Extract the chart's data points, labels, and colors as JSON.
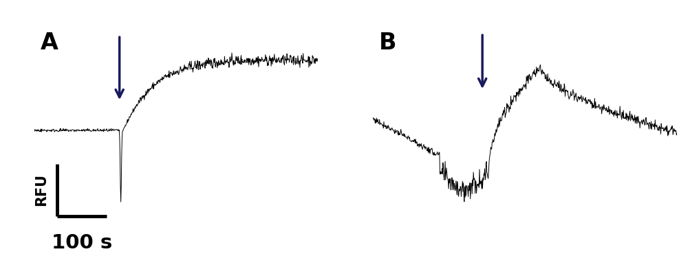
{
  "panel_A_label": "A",
  "panel_B_label": "B",
  "rfu_label": "RFU",
  "time_label": "100 s",
  "arrow_color": "#1a1a5e",
  "line_color": "#000000",
  "background_color": "#ffffff",
  "label_fontsize": 24,
  "axis_label_fontsize": 15,
  "time_label_fontsize": 21,
  "noise_seed_A": 42,
  "noise_seed_B": 77,
  "n_points": 700
}
